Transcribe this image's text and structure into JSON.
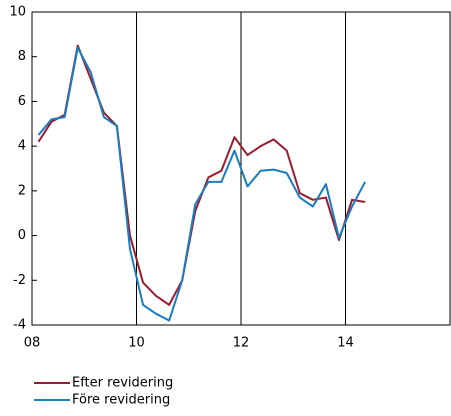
{
  "chart_data": {
    "type": "line",
    "x": [
      2008.125,
      2008.375,
      2008.625,
      2008.875,
      2009.125,
      2009.375,
      2009.625,
      2009.875,
      2010.125,
      2010.375,
      2010.625,
      2010.875,
      2011.125,
      2011.375,
      2011.625,
      2011.875,
      2012.125,
      2012.375,
      2012.625,
      2012.875,
      2013.125,
      2013.375,
      2013.625,
      2013.875,
      2014.125,
      2014.375
    ],
    "series": [
      {
        "name": "Efter revidering",
        "color": "#9b1b30",
        "values": [
          4.2,
          5.1,
          5.4,
          8.5,
          7.0,
          5.5,
          4.9,
          0.0,
          -2.1,
          -2.7,
          -3.1,
          -2.0,
          1.1,
          2.6,
          2.9,
          4.4,
          3.6,
          4.0,
          4.3,
          3.8,
          1.9,
          1.6,
          1.7,
          -0.2,
          1.6,
          1.5
        ]
      },
      {
        "name": "Före revidering",
        "color": "#1a7dc0",
        "values": [
          4.5,
          5.2,
          5.3,
          8.4,
          7.3,
          5.3,
          4.9,
          -0.6,
          -3.1,
          -3.5,
          -3.8,
          -2.0,
          1.4,
          2.4,
          2.4,
          3.8,
          2.2,
          2.9,
          2.95,
          2.8,
          1.7,
          1.3,
          2.3,
          -0.1,
          1.3,
          2.4
        ]
      }
    ],
    "xlim": [
      2008,
      2016
    ],
    "xticks": [
      {
        "value": 2008,
        "label": "08"
      },
      {
        "value": 2010,
        "label": "10"
      },
      {
        "value": 2012,
        "label": "12"
      },
      {
        "value": 2014,
        "label": "14"
      }
    ],
    "ylim": [
      -4,
      10
    ],
    "yticks": [
      -4,
      -2,
      0,
      2,
      4,
      6,
      8,
      10
    ],
    "grid": "x"
  }
}
